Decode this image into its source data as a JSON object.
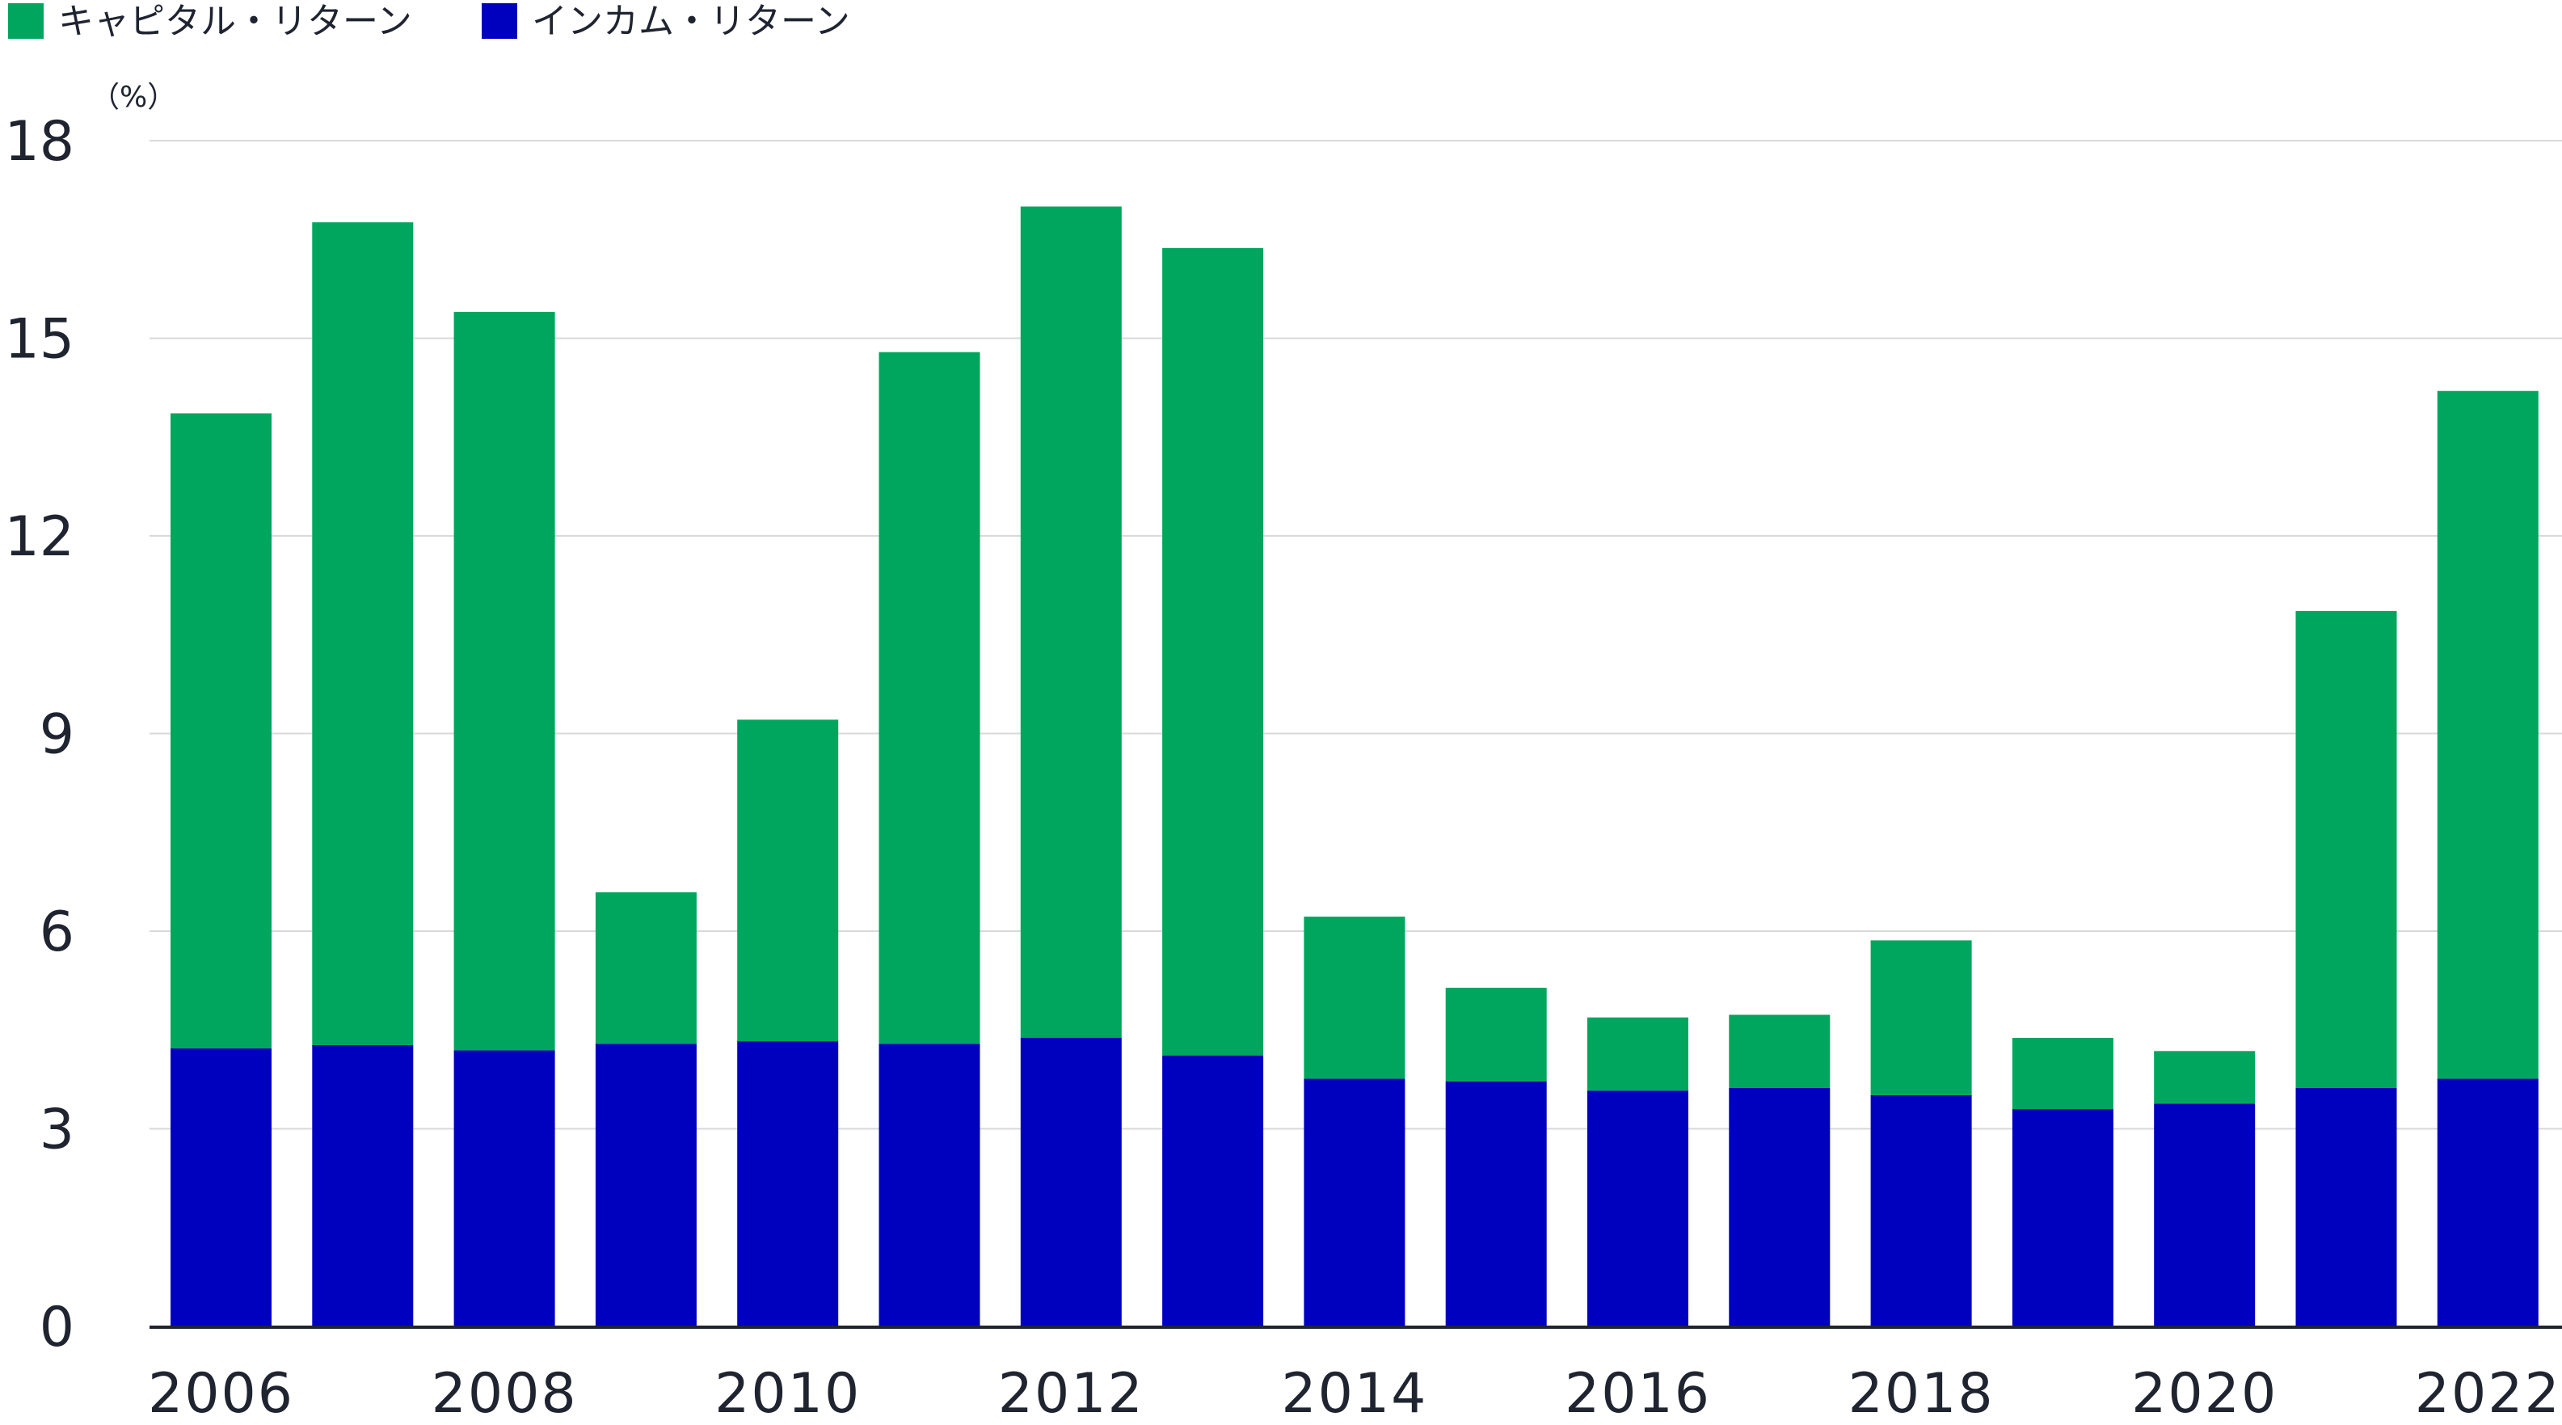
{
  "chart_data": {
    "type": "bar",
    "stacked": true,
    "unit_label": "（%）",
    "years": [
      2006,
      2007,
      2008,
      2009,
      2010,
      2011,
      2012,
      2013,
      2014,
      2015,
      2016,
      2017,
      2018,
      2019,
      2020,
      2021,
      2022
    ],
    "x_tick_labels": [
      "2006",
      "2008",
      "2010",
      "2012",
      "2014",
      "2016",
      "2018",
      "2020",
      "2022"
    ],
    "y_ticks": [
      0,
      3,
      6,
      9,
      12,
      15,
      18
    ],
    "ylim": [
      0,
      18
    ],
    "grid": true,
    "legend_position": "top-left",
    "series": [
      {
        "name": "インカム・リターン",
        "color": "#0000BF",
        "values": [
          4.22,
          4.27,
          4.19,
          4.29,
          4.33,
          4.29,
          4.38,
          4.11,
          3.76,
          3.72,
          3.58,
          3.62,
          3.51,
          3.3,
          3.38,
          3.62,
          3.76
        ]
      },
      {
        "name": "キャピタル・リターン",
        "color": "#00A65D",
        "values": [
          9.64,
          12.49,
          11.21,
          2.3,
          4.88,
          10.5,
          12.62,
          12.26,
          2.46,
          1.42,
          1.11,
          1.11,
          2.35,
          1.08,
          0.8,
          7.24,
          10.44
        ]
      }
    ]
  },
  "legend": [
    {
      "label": "キャピタル・リターン",
      "color": "#00A65D"
    },
    {
      "label": "インカム・リターン",
      "color": "#0000BF"
    }
  ],
  "colors": {
    "capital": "#00A65D",
    "income": "#0000BF",
    "grid": "#D9D9D9",
    "axis": "#1F2430"
  }
}
